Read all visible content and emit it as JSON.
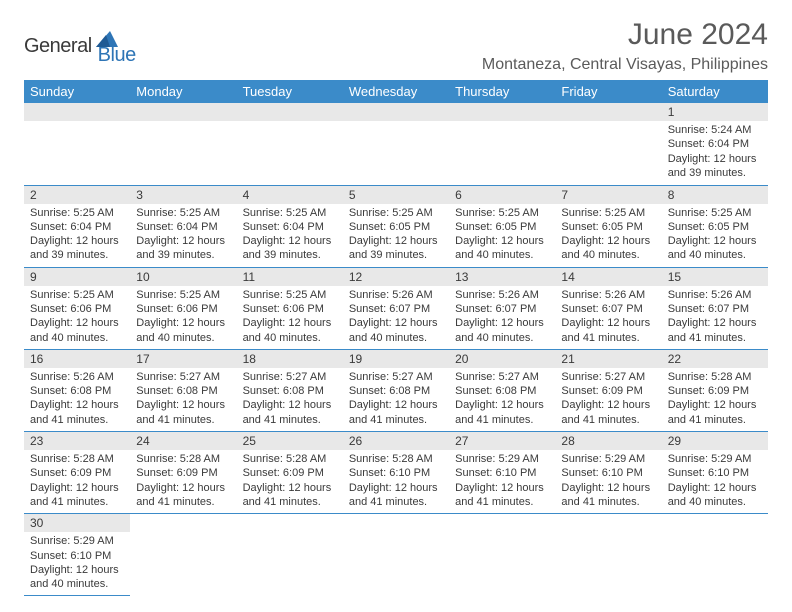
{
  "logo": {
    "text1": "General",
    "text2": "Blue"
  },
  "title": "June 2024",
  "location": "Montaneza, Central Visayas, Philippines",
  "columns": [
    "Sunday",
    "Monday",
    "Tuesday",
    "Wednesday",
    "Thursday",
    "Friday",
    "Saturday"
  ],
  "colors": {
    "header_bg": "#3b8bc9",
    "header_fg": "#ffffff",
    "daynum_bg": "#e8e8e8",
    "rule": "#3b8bc9",
    "text": "#3a3a3a",
    "logo_blue": "#2e75b6"
  },
  "weeks": [
    [
      {
        "n": "",
        "sr": "",
        "ss": "",
        "dl": ""
      },
      {
        "n": "",
        "sr": "",
        "ss": "",
        "dl": ""
      },
      {
        "n": "",
        "sr": "",
        "ss": "",
        "dl": ""
      },
      {
        "n": "",
        "sr": "",
        "ss": "",
        "dl": ""
      },
      {
        "n": "",
        "sr": "",
        "ss": "",
        "dl": ""
      },
      {
        "n": "",
        "sr": "",
        "ss": "",
        "dl": ""
      },
      {
        "n": "1",
        "sr": "Sunrise: 5:24 AM",
        "ss": "Sunset: 6:04 PM",
        "dl": "Daylight: 12 hours and 39 minutes."
      }
    ],
    [
      {
        "n": "2",
        "sr": "Sunrise: 5:25 AM",
        "ss": "Sunset: 6:04 PM",
        "dl": "Daylight: 12 hours and 39 minutes."
      },
      {
        "n": "3",
        "sr": "Sunrise: 5:25 AM",
        "ss": "Sunset: 6:04 PM",
        "dl": "Daylight: 12 hours and 39 minutes."
      },
      {
        "n": "4",
        "sr": "Sunrise: 5:25 AM",
        "ss": "Sunset: 6:04 PM",
        "dl": "Daylight: 12 hours and 39 minutes."
      },
      {
        "n": "5",
        "sr": "Sunrise: 5:25 AM",
        "ss": "Sunset: 6:05 PM",
        "dl": "Daylight: 12 hours and 39 minutes."
      },
      {
        "n": "6",
        "sr": "Sunrise: 5:25 AM",
        "ss": "Sunset: 6:05 PM",
        "dl": "Daylight: 12 hours and 40 minutes."
      },
      {
        "n": "7",
        "sr": "Sunrise: 5:25 AM",
        "ss": "Sunset: 6:05 PM",
        "dl": "Daylight: 12 hours and 40 minutes."
      },
      {
        "n": "8",
        "sr": "Sunrise: 5:25 AM",
        "ss": "Sunset: 6:05 PM",
        "dl": "Daylight: 12 hours and 40 minutes."
      }
    ],
    [
      {
        "n": "9",
        "sr": "Sunrise: 5:25 AM",
        "ss": "Sunset: 6:06 PM",
        "dl": "Daylight: 12 hours and 40 minutes."
      },
      {
        "n": "10",
        "sr": "Sunrise: 5:25 AM",
        "ss": "Sunset: 6:06 PM",
        "dl": "Daylight: 12 hours and 40 minutes."
      },
      {
        "n": "11",
        "sr": "Sunrise: 5:25 AM",
        "ss": "Sunset: 6:06 PM",
        "dl": "Daylight: 12 hours and 40 minutes."
      },
      {
        "n": "12",
        "sr": "Sunrise: 5:26 AM",
        "ss": "Sunset: 6:07 PM",
        "dl": "Daylight: 12 hours and 40 minutes."
      },
      {
        "n": "13",
        "sr": "Sunrise: 5:26 AM",
        "ss": "Sunset: 6:07 PM",
        "dl": "Daylight: 12 hours and 40 minutes."
      },
      {
        "n": "14",
        "sr": "Sunrise: 5:26 AM",
        "ss": "Sunset: 6:07 PM",
        "dl": "Daylight: 12 hours and 41 minutes."
      },
      {
        "n": "15",
        "sr": "Sunrise: 5:26 AM",
        "ss": "Sunset: 6:07 PM",
        "dl": "Daylight: 12 hours and 41 minutes."
      }
    ],
    [
      {
        "n": "16",
        "sr": "Sunrise: 5:26 AM",
        "ss": "Sunset: 6:08 PM",
        "dl": "Daylight: 12 hours and 41 minutes."
      },
      {
        "n": "17",
        "sr": "Sunrise: 5:27 AM",
        "ss": "Sunset: 6:08 PM",
        "dl": "Daylight: 12 hours and 41 minutes."
      },
      {
        "n": "18",
        "sr": "Sunrise: 5:27 AM",
        "ss": "Sunset: 6:08 PM",
        "dl": "Daylight: 12 hours and 41 minutes."
      },
      {
        "n": "19",
        "sr": "Sunrise: 5:27 AM",
        "ss": "Sunset: 6:08 PM",
        "dl": "Daylight: 12 hours and 41 minutes."
      },
      {
        "n": "20",
        "sr": "Sunrise: 5:27 AM",
        "ss": "Sunset: 6:08 PM",
        "dl": "Daylight: 12 hours and 41 minutes."
      },
      {
        "n": "21",
        "sr": "Sunrise: 5:27 AM",
        "ss": "Sunset: 6:09 PM",
        "dl": "Daylight: 12 hours and 41 minutes."
      },
      {
        "n": "22",
        "sr": "Sunrise: 5:28 AM",
        "ss": "Sunset: 6:09 PM",
        "dl": "Daylight: 12 hours and 41 minutes."
      }
    ],
    [
      {
        "n": "23",
        "sr": "Sunrise: 5:28 AM",
        "ss": "Sunset: 6:09 PM",
        "dl": "Daylight: 12 hours and 41 minutes."
      },
      {
        "n": "24",
        "sr": "Sunrise: 5:28 AM",
        "ss": "Sunset: 6:09 PM",
        "dl": "Daylight: 12 hours and 41 minutes."
      },
      {
        "n": "25",
        "sr": "Sunrise: 5:28 AM",
        "ss": "Sunset: 6:09 PM",
        "dl": "Daylight: 12 hours and 41 minutes."
      },
      {
        "n": "26",
        "sr": "Sunrise: 5:28 AM",
        "ss": "Sunset: 6:10 PM",
        "dl": "Daylight: 12 hours and 41 minutes."
      },
      {
        "n": "27",
        "sr": "Sunrise: 5:29 AM",
        "ss": "Sunset: 6:10 PM",
        "dl": "Daylight: 12 hours and 41 minutes."
      },
      {
        "n": "28",
        "sr": "Sunrise: 5:29 AM",
        "ss": "Sunset: 6:10 PM",
        "dl": "Daylight: 12 hours and 41 minutes."
      },
      {
        "n": "29",
        "sr": "Sunrise: 5:29 AM",
        "ss": "Sunset: 6:10 PM",
        "dl": "Daylight: 12 hours and 40 minutes."
      }
    ],
    [
      {
        "n": "30",
        "sr": "Sunrise: 5:29 AM",
        "ss": "Sunset: 6:10 PM",
        "dl": "Daylight: 12 hours and 40 minutes."
      },
      {
        "n": "",
        "sr": "",
        "ss": "",
        "dl": ""
      },
      {
        "n": "",
        "sr": "",
        "ss": "",
        "dl": ""
      },
      {
        "n": "",
        "sr": "",
        "ss": "",
        "dl": ""
      },
      {
        "n": "",
        "sr": "",
        "ss": "",
        "dl": ""
      },
      {
        "n": "",
        "sr": "",
        "ss": "",
        "dl": ""
      },
      {
        "n": "",
        "sr": "",
        "ss": "",
        "dl": ""
      }
    ]
  ]
}
